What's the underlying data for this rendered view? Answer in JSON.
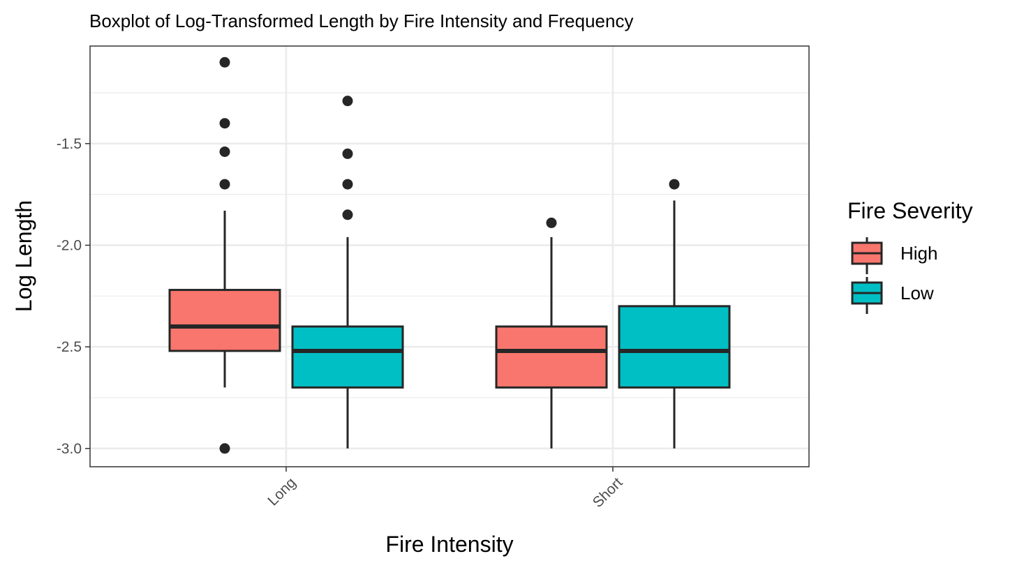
{
  "chart_data": {
    "type": "boxplot",
    "title": "Boxplot of Log-Transformed Length by Fire Intensity and Frequency",
    "xlabel": "Fire Intensity",
    "ylabel": "Log Length",
    "categories": [
      "Long",
      "Short"
    ],
    "ylim": [
      -3.09,
      -1.02
    ],
    "yticks": [
      -3.0,
      -2.5,
      -2.0,
      -1.5
    ],
    "ytick_labels": [
      "-3.0",
      "-2.5",
      "-2.0",
      "-1.5"
    ],
    "grid": true,
    "legend": {
      "title": "Fire Severity",
      "position": "right",
      "entries": [
        "High",
        "Low"
      ]
    },
    "colors": {
      "High": "#f8766d",
      "Low": "#00bfc4"
    },
    "series": [
      {
        "name": "High",
        "boxes": [
          {
            "category": "Long",
            "whisker_low": -2.7,
            "q1": -2.52,
            "median": -2.4,
            "q3": -2.22,
            "whisker_high": -1.83,
            "outliers": [
              -1.1,
              -1.4,
              -1.54,
              -1.7,
              -3.0
            ]
          },
          {
            "category": "Short",
            "whisker_low": -3.0,
            "q1": -2.7,
            "median": -2.52,
            "q3": -2.4,
            "whisker_high": -1.96,
            "outliers": [
              -1.89
            ]
          }
        ]
      },
      {
        "name": "Low",
        "boxes": [
          {
            "category": "Long",
            "whisker_low": -3.0,
            "q1": -2.7,
            "median": -2.52,
            "q3": -2.4,
            "whisker_high": -1.96,
            "outliers": [
              -1.29,
              -1.55,
              -1.7,
              -1.85
            ]
          },
          {
            "category": "Short",
            "whisker_low": -3.0,
            "q1": -2.7,
            "median": -2.52,
            "q3": -2.3,
            "whisker_high": -1.78,
            "outliers": [
              -1.7
            ]
          }
        ]
      }
    ]
  }
}
